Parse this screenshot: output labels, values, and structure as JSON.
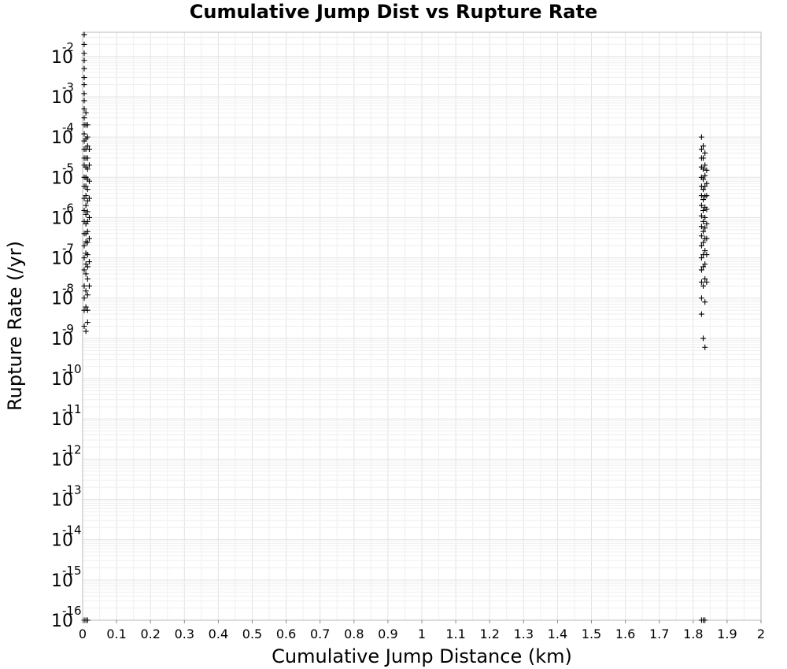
{
  "chart_data": {
    "type": "scatter",
    "title": "Cumulative Jump Dist vs Rupture Rate",
    "xlabel": "Cumulative Jump Distance (km)",
    "ylabel": "Rupture Rate (/yr)",
    "xlim": [
      0,
      2
    ],
    "ylim": [
      1e-16,
      0.04
    ],
    "yscale": "log",
    "grid": true,
    "marker": "plus",
    "marker_color": "#000000",
    "xticks": [
      "0",
      "0.1",
      "0.2",
      "0.3",
      "0.4",
      "0.5",
      "0.6",
      "0.7",
      "0.8",
      "0.9",
      "1",
      "1.1",
      "1.2",
      "1.3",
      "1.4",
      "1.5",
      "1.6",
      "1.7",
      "1.8",
      "1.9",
      "2"
    ],
    "yticks": [
      {
        "base": "10",
        "exp": "-16"
      },
      {
        "base": "10",
        "exp": "-15"
      },
      {
        "base": "10",
        "exp": "-14"
      },
      {
        "base": "10",
        "exp": "-13"
      },
      {
        "base": "10",
        "exp": "-12"
      },
      {
        "base": "10",
        "exp": "-11"
      },
      {
        "base": "10",
        "exp": "-10"
      },
      {
        "base": "10",
        "exp": "-9"
      },
      {
        "base": "10",
        "exp": "-8"
      },
      {
        "base": "10",
        "exp": "-7"
      },
      {
        "base": "10",
        "exp": "-6"
      },
      {
        "base": "10",
        "exp": "-5"
      },
      {
        "base": "10",
        "exp": "-4"
      },
      {
        "base": "10",
        "exp": "-3"
      },
      {
        "base": "10",
        "exp": "-2"
      }
    ],
    "series": [
      {
        "x": [
          0,
          0,
          0,
          0,
          0,
          0,
          0,
          0,
          0,
          0,
          0,
          0,
          0,
          0,
          0,
          0,
          0,
          0,
          0,
          0,
          0,
          0,
          0,
          0,
          0,
          0,
          0,
          0,
          0,
          0,
          0.005,
          0.005,
          0.005,
          0.005,
          0.005,
          0.005,
          0.005,
          0.005,
          0.005,
          0.005,
          0.005,
          0.005,
          0.005,
          0.005,
          0.005,
          0.005,
          0.005,
          0.005,
          0.005,
          0.005,
          0.01,
          0.01,
          0.01,
          0.01,
          0.01,
          0.01,
          0.01,
          0.01,
          0.01,
          0.01,
          0.01,
          0.01,
          0.01,
          0.01,
          0.01,
          0.01,
          0.01,
          0.01,
          0.015,
          0.015,
          0.015,
          0.015,
          0.015,
          0.015,
          0.015,
          0.015,
          1.82,
          1.82,
          1.82,
          1.82,
          1.82,
          1.82,
          1.82,
          1.82,
          1.82,
          1.82,
          1.82,
          1.82,
          1.82,
          1.82,
          1.82,
          1.82,
          1.82,
          1.825,
          1.825,
          1.825,
          1.825,
          1.825,
          1.825,
          1.825,
          1.825,
          1.825,
          1.825,
          1.825,
          1.825,
          1.825,
          1.825,
          1.83,
          1.83,
          1.83,
          1.83,
          1.83,
          1.83,
          1.83,
          1.83,
          1.83,
          1.83,
          1.83,
          1.83,
          1.83,
          1.83,
          1.835,
          1.835,
          1.835,
          1.835,
          1.835,
          1.835,
          1.835,
          1.835
        ],
        "y": [
          0.035,
          0.02,
          0.012,
          0.008,
          0.005,
          0.003,
          0.002,
          0.0012,
          0.0008,
          0.0005,
          0.0003,
          0.0002,
          0.00012,
          8e-05,
          5e-05,
          3e-05,
          2e-05,
          1e-05,
          6e-06,
          3e-06,
          1.5e-06,
          8e-07,
          4e-07,
          2e-07,
          1e-07,
          5e-08,
          2e-08,
          1e-08,
          5e-09,
          2e-09,
          0.0004,
          0.0002,
          9e-05,
          5e-05,
          3e-05,
          1.8e-05,
          1e-05,
          6e-06,
          3.5e-06,
          2e-06,
          1.2e-06,
          7e-07,
          4e-07,
          2.5e-07,
          1.3e-07,
          7e-08,
          4e-08,
          1.5e-08,
          6e-09,
          1.5e-09,
          0.0002,
          0.0001,
          6e-05,
          3e-05,
          1.6e-05,
          9e-06,
          5e-06,
          2.6e-06,
          1.4e-06,
          8e-07,
          4.5e-07,
          2.4e-07,
          1.2e-07,
          6e-08,
          3e-08,
          1.2e-08,
          5e-09,
          2.5e-09,
          5e-05,
          2e-05,
          8e-06,
          3e-06,
          1e-06,
          3e-07,
          8e-08,
          2e-08,
          0.0001,
          5e-05,
          3e-05,
          1.8e-05,
          1e-05,
          6e-06,
          3.5e-06,
          2e-06,
          1.1e-06,
          6e-07,
          3.5e-07,
          2e-07,
          1e-07,
          5e-08,
          2.5e-08,
          1e-08,
          4e-09,
          6e-05,
          3e-05,
          1.6e-05,
          9e-06,
          5e-06,
          2.8e-06,
          1.5e-06,
          8e-07,
          4.5e-07,
          2.4e-07,
          1.2e-07,
          6e-08,
          2e-08,
          1e-09,
          4e-05,
          2e-05,
          1.1e-05,
          6e-06,
          3.4e-06,
          1.8e-06,
          1e-06,
          5.5e-07,
          3e-07,
          1.5e-07,
          7e-08,
          3e-08,
          8e-09,
          6e-10,
          1.5e-05,
          7e-06,
          3.5e-06,
          1.6e-06,
          7e-07,
          3e-07,
          1.2e-07,
          2.5e-08
        ]
      },
      {
        "x": [
          0,
          0.005,
          0.01,
          1.82,
          1.825,
          1.83
        ],
        "y": [
          1e-16,
          1e-16,
          1e-16,
          1e-16,
          1e-16,
          1e-16
        ]
      }
    ]
  }
}
